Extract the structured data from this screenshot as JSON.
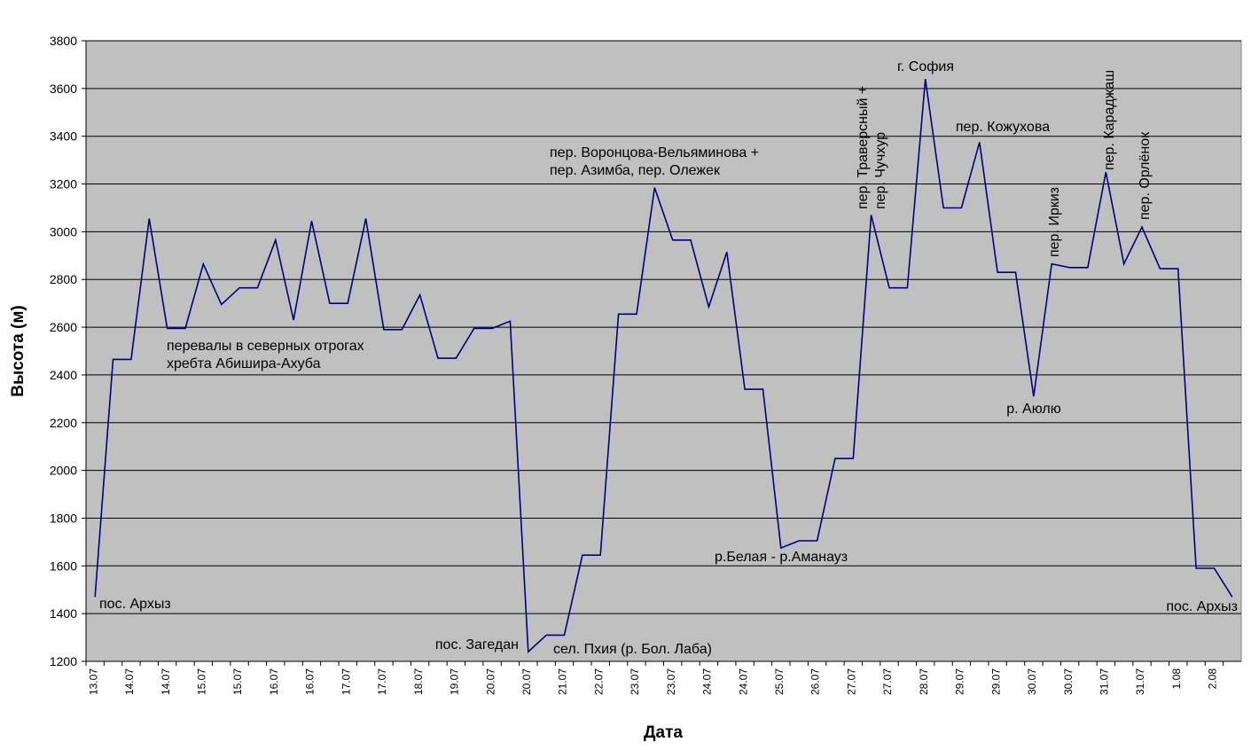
{
  "chart_data": {
    "type": "line",
    "y_label": "Высота (м)",
    "x_label": "Дата",
    "categories": [
      "13.07",
      null,
      "14.07",
      null,
      "14.07",
      null,
      "15.07",
      null,
      "15.07",
      null,
      "16.07",
      null,
      "16.07",
      null,
      "17.07",
      null,
      "17.07",
      null,
      "18.07",
      null,
      "19.07",
      null,
      "20.07",
      null,
      "20.07",
      null,
      "21.07",
      null,
      "22.07",
      null,
      "23.07",
      null,
      "23.07",
      null,
      "24.07",
      null,
      "24.07",
      null,
      "25.07",
      null,
      "26.07",
      null,
      "27.07",
      null,
      "27.07",
      null,
      "28.07",
      null,
      "29.07",
      null,
      "29.07",
      null,
      "30.07",
      null,
      "30.07",
      null,
      "31.07",
      null,
      "31.07",
      null,
      "1.08",
      null,
      "2.08",
      null
    ],
    "series": [
      {
        "name": "Высота",
        "color": "#000080",
        "values": [
          1470,
          2465,
          2465,
          3055,
          2595,
          2595,
          2865,
          2695,
          2765,
          2765,
          2965,
          2630,
          3045,
          2700,
          2700,
          3055,
          2590,
          2590,
          2735,
          2470,
          2470,
          2595,
          2595,
          2625,
          1240,
          1310,
          1310,
          1645,
          1645,
          2655,
          2655,
          3185,
          2965,
          2965,
          2685,
          2915,
          2340,
          2340,
          1675,
          1705,
          1705,
          2050,
          2050,
          3070,
          2765,
          2765,
          3640,
          3100,
          3100,
          3375,
          2830,
          2830,
          2310,
          2865,
          2850,
          2850,
          3250,
          2865,
          3020,
          2845,
          2845,
          1590,
          1590,
          1470
        ]
      }
    ],
    "ylim": [
      1200,
      3800
    ],
    "yticks": [
      1200,
      1400,
      1600,
      1800,
      2000,
      2200,
      2400,
      2600,
      2800,
      3000,
      3200,
      3400,
      3600,
      3800
    ],
    "grid": true,
    "plot_background": "#c0c0c0",
    "annotations": [
      {
        "lines": [
          "пос. Архыз"
        ]
      },
      {
        "lines": [
          "перевалы в северных отрогах",
          "хребта Абишира-Ахуба"
        ]
      },
      {
        "lines": [
          "пос. Загедан"
        ]
      },
      {
        "lines": [
          "сел. Пхия (р. Бол. Лаба)"
        ]
      },
      {
        "lines": [
          "пер. Воронцова-Вельяминова +",
          "пер. Азимба, пер. Олежек"
        ]
      },
      {
        "lines": [
          "р.Белая - р.Аманауз"
        ]
      },
      {
        "lines": [
          "пер. Траверсный +",
          "пер. Чучхур"
        ]
      },
      {
        "lines": [
          "г. София"
        ]
      },
      {
        "lines": [
          "пер. Кожухова"
        ]
      },
      {
        "lines": [
          "р. Аюлю"
        ]
      },
      {
        "lines": [
          "пер. Иркиз"
        ]
      },
      {
        "lines": [
          "пер. Караджаш"
        ]
      },
      {
        "lines": [
          "пер. Орлёнок"
        ]
      },
      {
        "lines": [
          "пос. Архыз"
        ]
      }
    ]
  }
}
